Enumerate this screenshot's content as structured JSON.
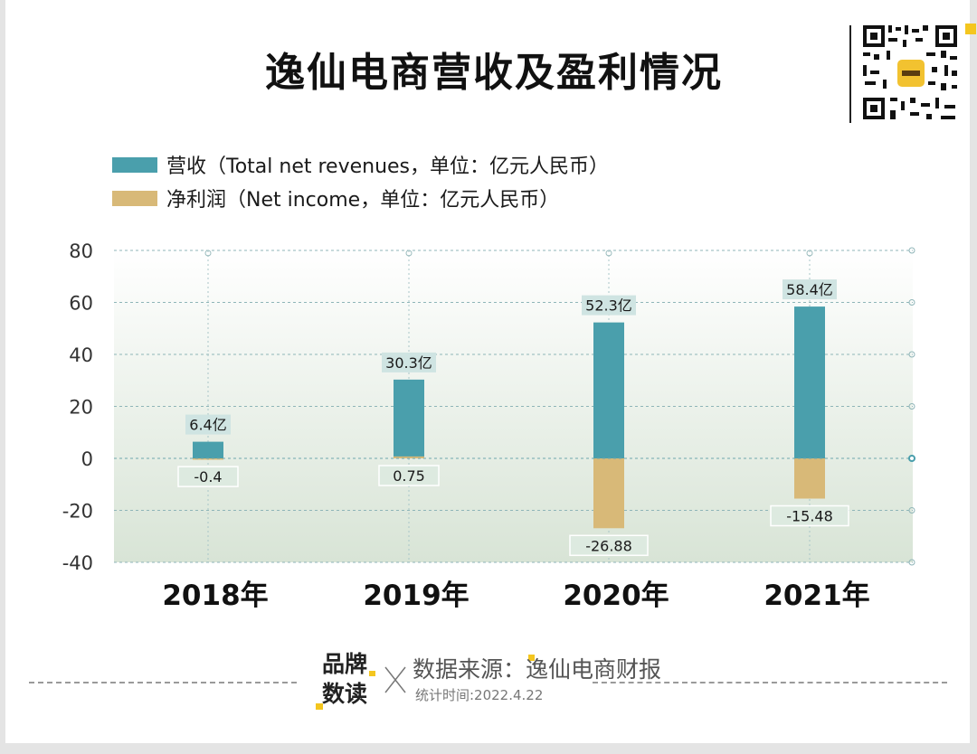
{
  "title": "逸仙电商营收及盈利情况",
  "qr_code": {
    "name": "品牌数读"
  },
  "legend": [
    {
      "label": "营收（Total net revenues，单位：亿元人民币）",
      "color": "#4a9fac"
    },
    {
      "label": "净利润（Net income，单位：亿元人民币）",
      "color": "#d8b978"
    }
  ],
  "chart_data": {
    "type": "bar",
    "categories": [
      "2018年",
      "2019年",
      "2020年",
      "2021年"
    ],
    "series": [
      {
        "name": "营收（Total net revenues，单位：亿元人民币）",
        "values": [
          6.4,
          30.3,
          52.3,
          58.4
        ],
        "labels": [
          "6.4亿",
          "30.3亿",
          "52.3亿",
          "58.4亿"
        ],
        "color": "#4a9fac"
      },
      {
        "name": "净利润（Net income，单位：亿元人民币）",
        "values": [
          -0.4,
          0.75,
          -26.88,
          -15.48
        ],
        "labels": [
          "-0.4",
          "0.75",
          "-26.88",
          "-15.48"
        ],
        "color": "#d8b978"
      }
    ],
    "yticks": [
      "80",
      "60",
      "40",
      "20",
      "0",
      "-20",
      "-40"
    ],
    "ylim": [
      -40,
      80
    ],
    "grid": true,
    "title": "逸仙电商营收及盈利情况"
  },
  "footer": {
    "brand_line1": "品牌",
    "brand_line2": "数读",
    "source": "数据来源：逸仙电商财报",
    "date": "统计时间:2022.4.22"
  }
}
